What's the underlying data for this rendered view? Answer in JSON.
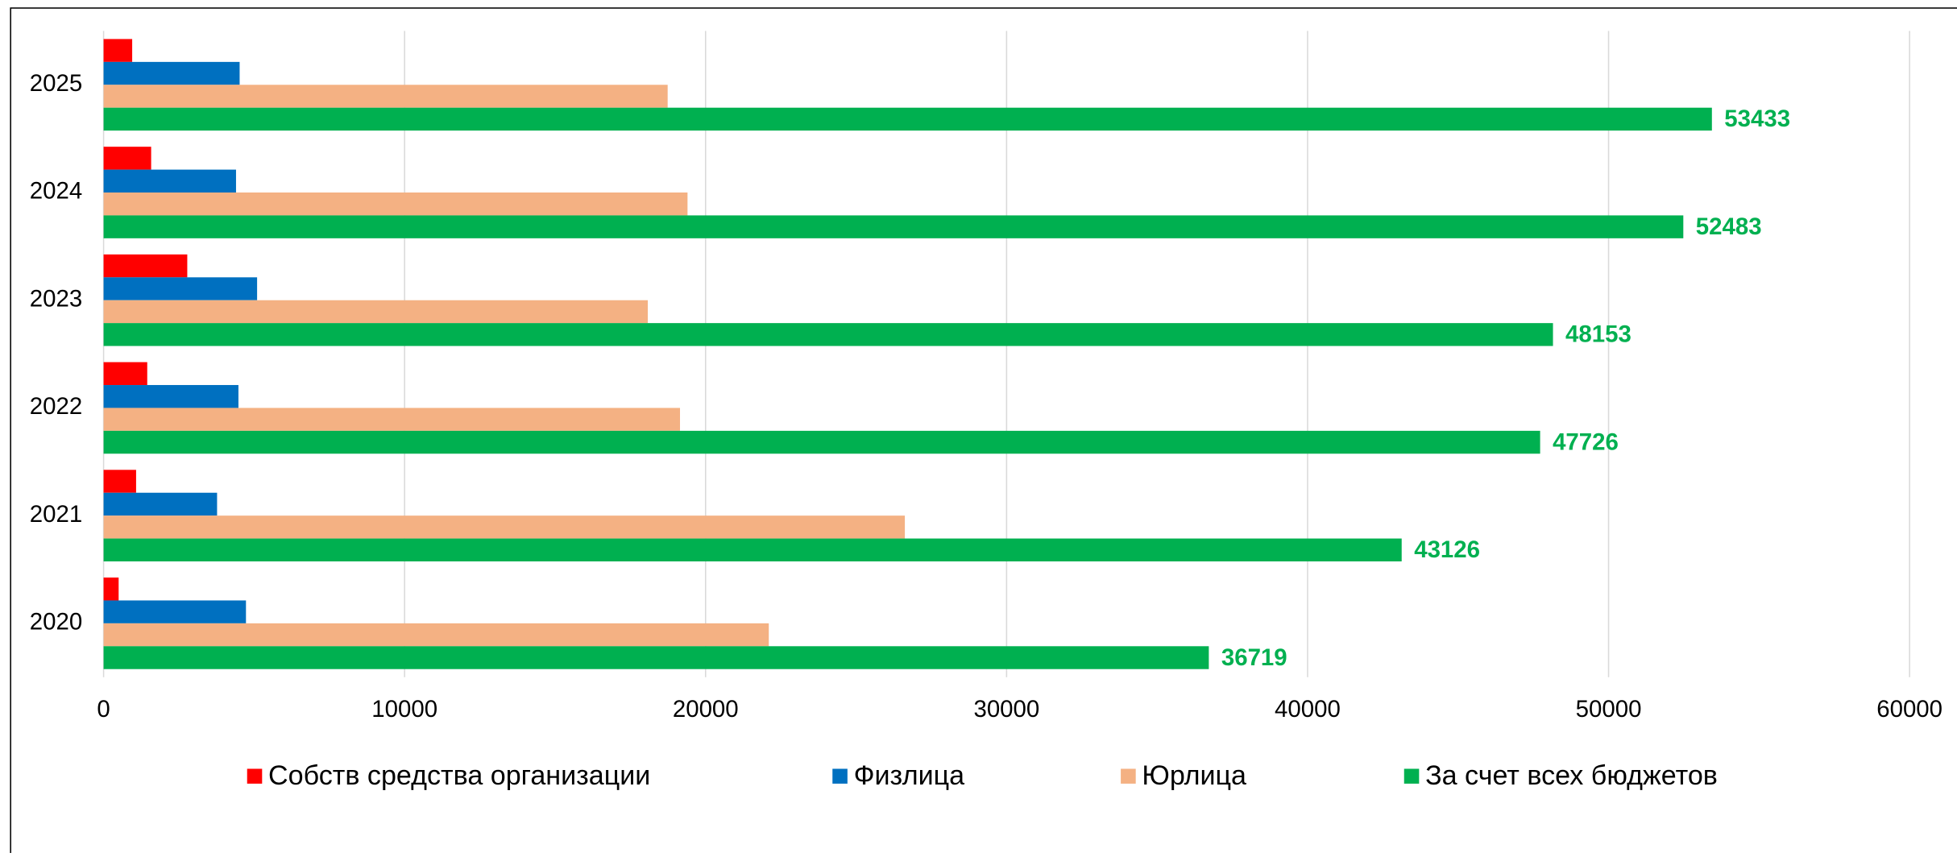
{
  "chart_data": {
    "type": "barh",
    "categories": [
      "2020",
      "2021",
      "2022",
      "2023",
      "2024",
      "2025"
    ],
    "series": [
      {
        "name": "Собств средства организации",
        "color": "#ff0000",
        "values": [
          500,
          1080,
          1450,
          2780,
          1580,
          950
        ]
      },
      {
        "name": "Физлица",
        "color": "#0070c0",
        "values": [
          4730,
          3770,
          4480,
          5100,
          4400,
          4520
        ]
      },
      {
        "name": "Юрлица",
        "color": "#f4b183",
        "values": [
          22100,
          26620,
          19150,
          18080,
          19400,
          18740
        ]
      },
      {
        "name": "За счет всех бюджетов",
        "color": "#00b050",
        "values": [
          36719,
          43126,
          47726,
          48153,
          52483,
          53433
        ],
        "data_labels": true
      }
    ],
    "xlim": [
      0,
      60000
    ],
    "xticks": [
      0,
      10000,
      20000,
      30000,
      40000,
      50000,
      60000
    ],
    "grid": true,
    "legend": "bottom"
  }
}
